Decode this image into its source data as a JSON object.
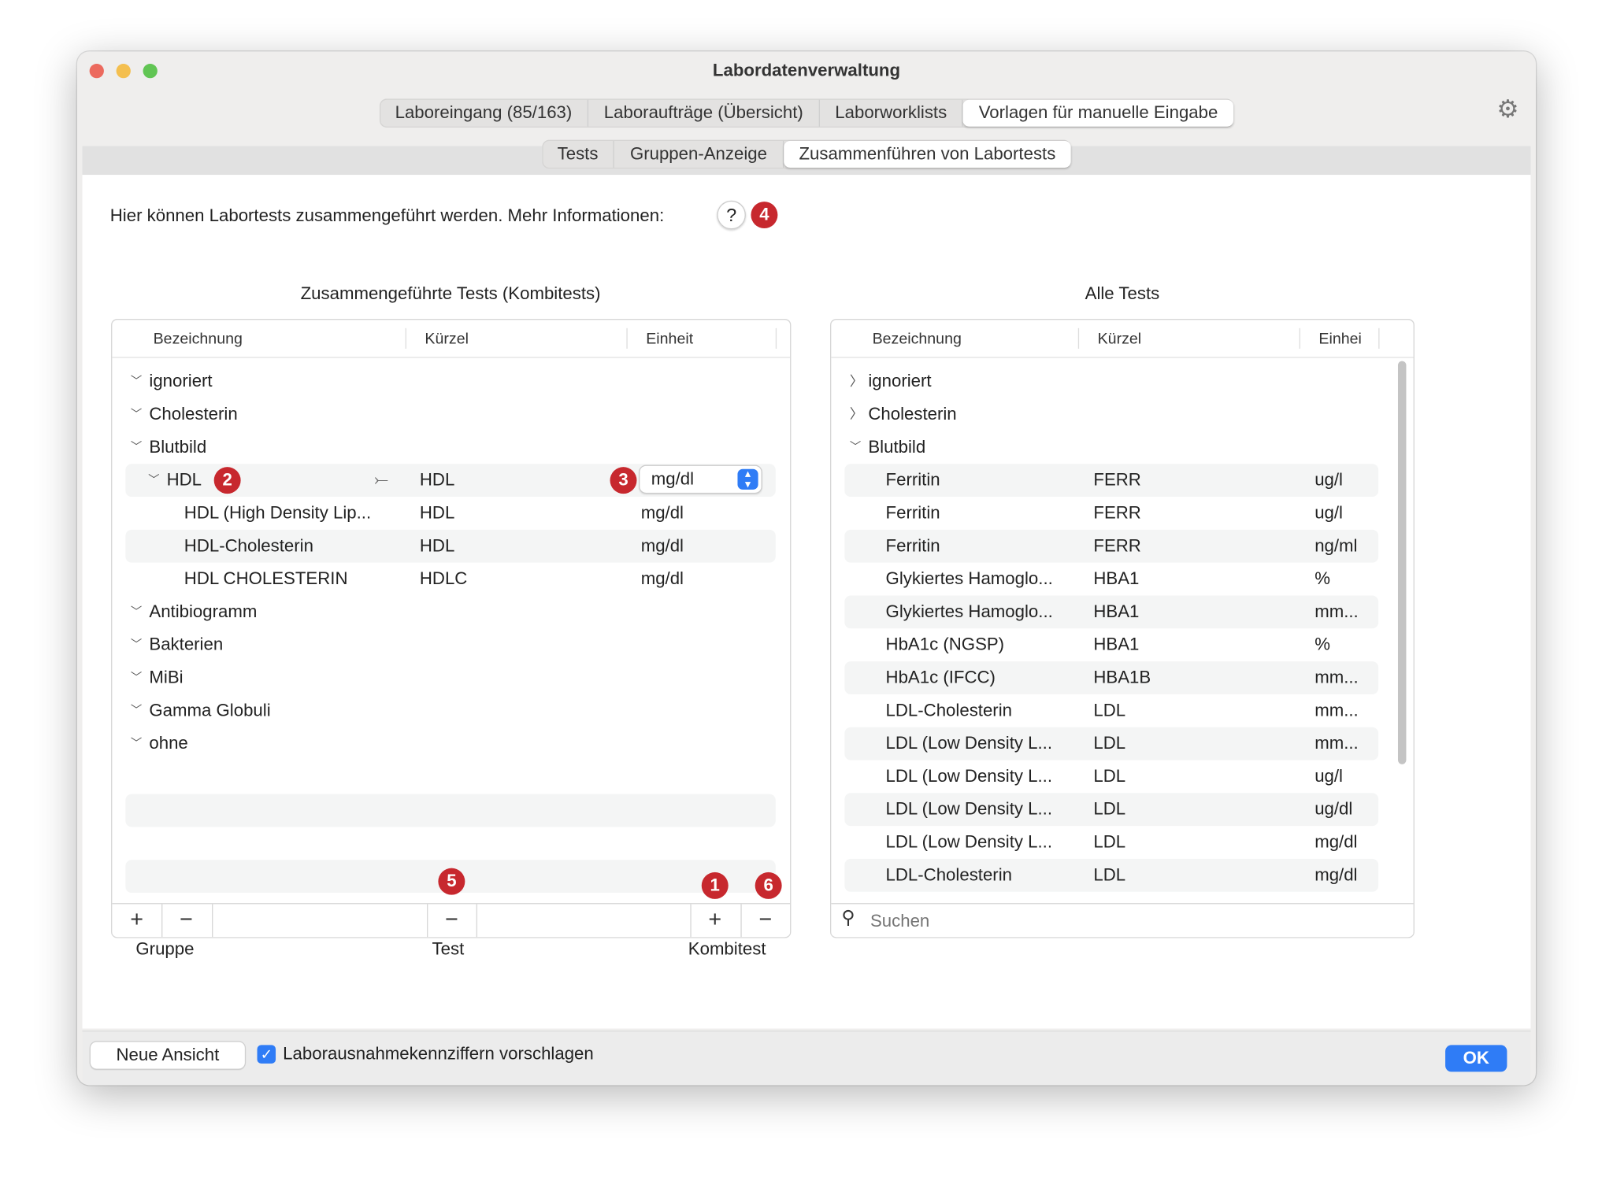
{
  "window": {
    "title": "Labordatenverwaltung"
  },
  "main_tabs": [
    {
      "label": "Laboreingang (85/163)"
    },
    {
      "label": "Laboraufträge (Übersicht)"
    },
    {
      "label": "Laborworklists"
    },
    {
      "label": "Vorlagen für manuelle Eingabe",
      "selected": true
    }
  ],
  "sub_tabs": [
    {
      "label": "Tests"
    },
    {
      "label": "Gruppen-Anzeige"
    },
    {
      "label": "Zusammenführen von Labortests",
      "selected": true
    }
  ],
  "info": {
    "text": "Hier können Labortests zusammengeführt werden. Mehr Informationen:",
    "help": "?"
  },
  "badges": {
    "b1": "1",
    "b2": "2",
    "b3": "3",
    "b4": "4",
    "b5": "5",
    "b6": "6"
  },
  "colors": {
    "badge": "#c7282e",
    "accent": "#2f7cf6"
  },
  "left": {
    "title": "Zusammengeführte Tests (Kombitests)",
    "columns": [
      "Bezeichnung",
      "Kürzel",
      "Einheit"
    ],
    "rows": [
      {
        "level": 0,
        "expanded": true,
        "name": "ignoriert"
      },
      {
        "level": 0,
        "expanded": true,
        "name": "Cholesterin"
      },
      {
        "level": 0,
        "expanded": true,
        "name": "Blutbild"
      },
      {
        "level": 1,
        "expanded": true,
        "name": "HDL",
        "code": "HDL",
        "unit": "mg/dl",
        "combo": true
      },
      {
        "level": 2,
        "name": "HDL (High Density Lip...",
        "code": "HDL",
        "unit": "mg/dl"
      },
      {
        "level": 2,
        "name": "HDL-Cholesterin",
        "code": "HDL",
        "unit": "mg/dl"
      },
      {
        "level": 2,
        "name": "HDL CHOLESTERIN",
        "code": "HDLC",
        "unit": "mg/dl"
      },
      {
        "level": 0,
        "expanded": true,
        "name": "Antibiogramm"
      },
      {
        "level": 0,
        "expanded": true,
        "name": "Bakterien"
      },
      {
        "level": 0,
        "expanded": true,
        "name": "MiBi"
      },
      {
        "level": 0,
        "expanded": true,
        "name": "Gamma Globuli"
      },
      {
        "level": 0,
        "expanded": true,
        "name": "ohne"
      }
    ],
    "buttons": {
      "add": "+",
      "remove": "−",
      "test_remove": "−",
      "kombi_add": "+",
      "kombi_remove": "−"
    },
    "labels": {
      "gruppe": "Gruppe",
      "test": "Test",
      "kombitest": "Kombitest"
    }
  },
  "right": {
    "title": "Alle Tests",
    "columns": [
      "Bezeichnung",
      "Kürzel",
      "Einhei"
    ],
    "rows": [
      {
        "level": 0,
        "expanded": false,
        "name": "ignoriert"
      },
      {
        "level": 0,
        "expanded": false,
        "name": "Cholesterin"
      },
      {
        "level": 0,
        "expanded": true,
        "name": "Blutbild"
      },
      {
        "level": 1,
        "name": "Ferritin",
        "code": "FERR",
        "unit": "ug/l"
      },
      {
        "level": 1,
        "name": "Ferritin",
        "code": "FERR",
        "unit": "ug/l"
      },
      {
        "level": 1,
        "name": "Ferritin",
        "code": "FERR",
        "unit": "ng/ml"
      },
      {
        "level": 1,
        "name": "Glykiertes Hamoglo...",
        "code": "HBA1",
        "unit": "%"
      },
      {
        "level": 1,
        "name": "Glykiertes Hamoglo...",
        "code": "HBA1",
        "unit": "mm..."
      },
      {
        "level": 1,
        "name": "HbA1c (NGSP)",
        "code": "HBA1",
        "unit": "%"
      },
      {
        "level": 1,
        "name": "HbA1c (IFCC)",
        "code": "HBA1B",
        "unit": "mm..."
      },
      {
        "level": 1,
        "name": "LDL-Cholesterin",
        "code": "LDL",
        "unit": "mm..."
      },
      {
        "level": 1,
        "name": "LDL (Low Density L...",
        "code": "LDL",
        "unit": "mm..."
      },
      {
        "level": 1,
        "name": "LDL (Low Density L...",
        "code": "LDL",
        "unit": "ug/l"
      },
      {
        "level": 1,
        "name": "LDL (Low Density L...",
        "code": "LDL",
        "unit": "ug/dl"
      },
      {
        "level": 1,
        "name": "LDL (Low Density L...",
        "code": "LDL",
        "unit": "mg/dl"
      },
      {
        "level": 1,
        "name": "LDL-Cholesterin",
        "code": "LDL",
        "unit": "mg/dl"
      }
    ],
    "search_placeholder": "Suchen"
  },
  "footer": {
    "new_view": "Neue Ansicht",
    "checkbox_label": "Laborausnahmekennziffern vorschlagen",
    "checkbox_checked": true,
    "ok": "OK"
  }
}
